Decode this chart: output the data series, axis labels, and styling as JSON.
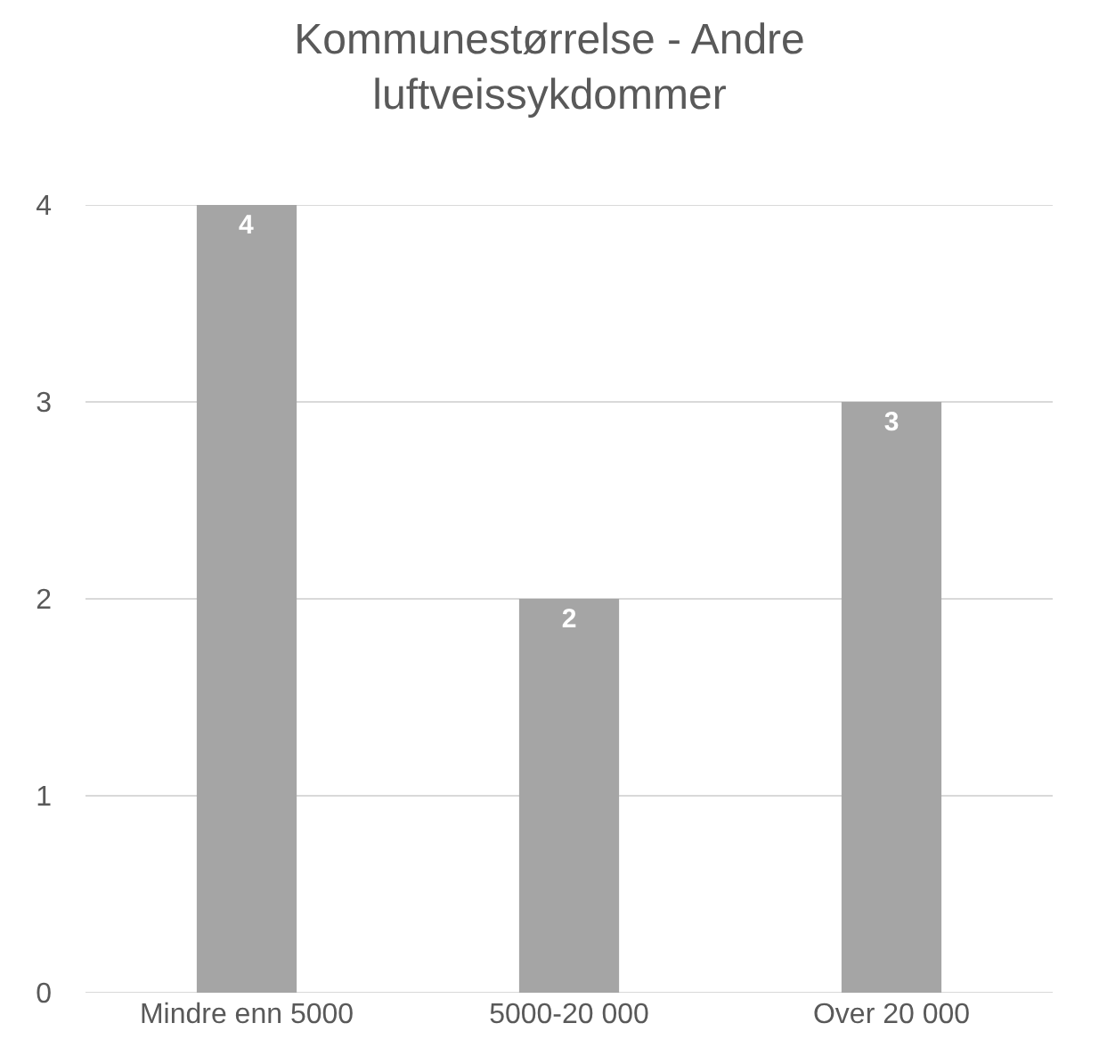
{
  "chart_data": {
    "type": "bar",
    "title": "Kommunestørrelse - Andre luftveissykdommer",
    "categories": [
      "Mindre enn 5000",
      "5000-20 000",
      "Over 20 000"
    ],
    "values": [
      4,
      2,
      3
    ],
    "color": "#a5a5a5",
    "ylim": [
      0,
      4
    ],
    "yticks": [
      0,
      1,
      2,
      3,
      4
    ],
    "grid": "y",
    "data_labels": true,
    "legend": false
  }
}
